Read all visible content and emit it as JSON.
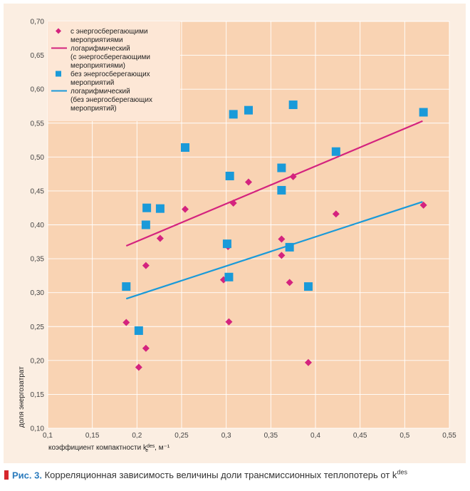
{
  "chart_data": {
    "type": "scatter",
    "title": "",
    "xlabel": "коэффициент компактности k",
    "xlabel_sub": "e",
    "xlabel_sup": "des",
    "xlabel_unit": ", м⁻¹",
    "ylabel": "доля энергозатрат",
    "xlim": [
      0.1,
      0.55
    ],
    "ylim": [
      0.1,
      0.7
    ],
    "x_ticks": [
      0.1,
      0.15,
      0.2,
      0.25,
      0.3,
      0.35,
      0.4,
      0.45,
      0.5,
      0.55
    ],
    "x_tick_labels": [
      "0,1",
      "0,15",
      "0,2",
      "0,25",
      "0,3",
      "0,35",
      "0,4",
      "0,45",
      "0,5",
      "0,55"
    ],
    "y_ticks": [
      0.1,
      0.15,
      0.2,
      0.25,
      0.3,
      0.35,
      0.4,
      0.45,
      0.5,
      0.55,
      0.6,
      0.65,
      0.7
    ],
    "y_tick_labels": [
      "0,10",
      "0,15",
      "0,20",
      "0,25",
      "0,30",
      "0,35",
      "0,40",
      "0,45",
      "0,50",
      "0,55",
      "0,60",
      "0,65",
      "0,70"
    ],
    "grid": true,
    "legend_position": "top-left",
    "series": [
      {
        "name": "с энергосберегающими мероприятиями",
        "legend_lines": [
          "с энергосберегающими",
          "мероприятиями"
        ],
        "marker": "diamond",
        "color": "#d4237e",
        "points": [
          {
            "x": 0.188,
            "y": 0.256
          },
          {
            "x": 0.202,
            "y": 0.19
          },
          {
            "x": 0.21,
            "y": 0.218
          },
          {
            "x": 0.21,
            "y": 0.34
          },
          {
            "x": 0.226,
            "y": 0.38
          },
          {
            "x": 0.254,
            "y": 0.423
          },
          {
            "x": 0.297,
            "y": 0.319
          },
          {
            "x": 0.302,
            "y": 0.368
          },
          {
            "x": 0.303,
            "y": 0.257
          },
          {
            "x": 0.308,
            "y": 0.432
          },
          {
            "x": 0.325,
            "y": 0.463
          },
          {
            "x": 0.362,
            "y": 0.379
          },
          {
            "x": 0.362,
            "y": 0.355
          },
          {
            "x": 0.371,
            "y": 0.315
          },
          {
            "x": 0.375,
            "y": 0.471
          },
          {
            "x": 0.392,
            "y": 0.197
          },
          {
            "x": 0.423,
            "y": 0.416
          },
          {
            "x": 0.521,
            "y": 0.429
          }
        ]
      },
      {
        "name": "логарифмический (с энергосберегающими мероприятиями)",
        "legend_lines": [
          "логарифмический",
          "(с энергосберегающими",
          "мероприятиями)"
        ],
        "marker": "line",
        "color": "#d4237e",
        "line_from": {
          "x": 0.188,
          "y": 0.369
        },
        "line_to": {
          "x": 0.52,
          "y": 0.553
        }
      },
      {
        "name": "без энергосберегающих мероприятий",
        "legend_lines": [
          "без энергосберегающих",
          "мероприятий"
        ],
        "marker": "square",
        "color": "#1a9ad9",
        "points": [
          {
            "x": 0.188,
            "y": 0.309
          },
          {
            "x": 0.202,
            "y": 0.244
          },
          {
            "x": 0.21,
            "y": 0.4
          },
          {
            "x": 0.211,
            "y": 0.425
          },
          {
            "x": 0.226,
            "y": 0.424
          },
          {
            "x": 0.254,
            "y": 0.514
          },
          {
            "x": 0.301,
            "y": 0.372
          },
          {
            "x": 0.303,
            "y": 0.323
          },
          {
            "x": 0.304,
            "y": 0.472
          },
          {
            "x": 0.308,
            "y": 0.563
          },
          {
            "x": 0.325,
            "y": 0.569
          },
          {
            "x": 0.362,
            "y": 0.484
          },
          {
            "x": 0.362,
            "y": 0.451
          },
          {
            "x": 0.371,
            "y": 0.367
          },
          {
            "x": 0.375,
            "y": 0.577
          },
          {
            "x": 0.392,
            "y": 0.309
          },
          {
            "x": 0.423,
            "y": 0.508
          },
          {
            "x": 0.521,
            "y": 0.566
          }
        ]
      },
      {
        "name": "логарифмический (без энергосберегающих мероприятий)",
        "legend_lines": [
          "логарифмический",
          "(без энергосберегающих",
          "мероприятий)"
        ],
        "marker": "line",
        "color": "#1a9ad9",
        "line_from": {
          "x": 0.188,
          "y": 0.291
        },
        "line_to": {
          "x": 0.52,
          "y": 0.434
        }
      }
    ]
  },
  "caption": {
    "figure_label": "Рис. 3.",
    "text": "Корреляционная зависимость величины доли трансмиссионных теплопотерь от k",
    "sup": "des",
    "sub": "e"
  },
  "colors": {
    "panel_background": "#fbeee2",
    "plot_background": "#f9d3b3",
    "legend_background": "#fde7d6",
    "grid": "#ffffff",
    "caption_marker": "#d6262c",
    "caption_label": "#2a7bbd"
  }
}
